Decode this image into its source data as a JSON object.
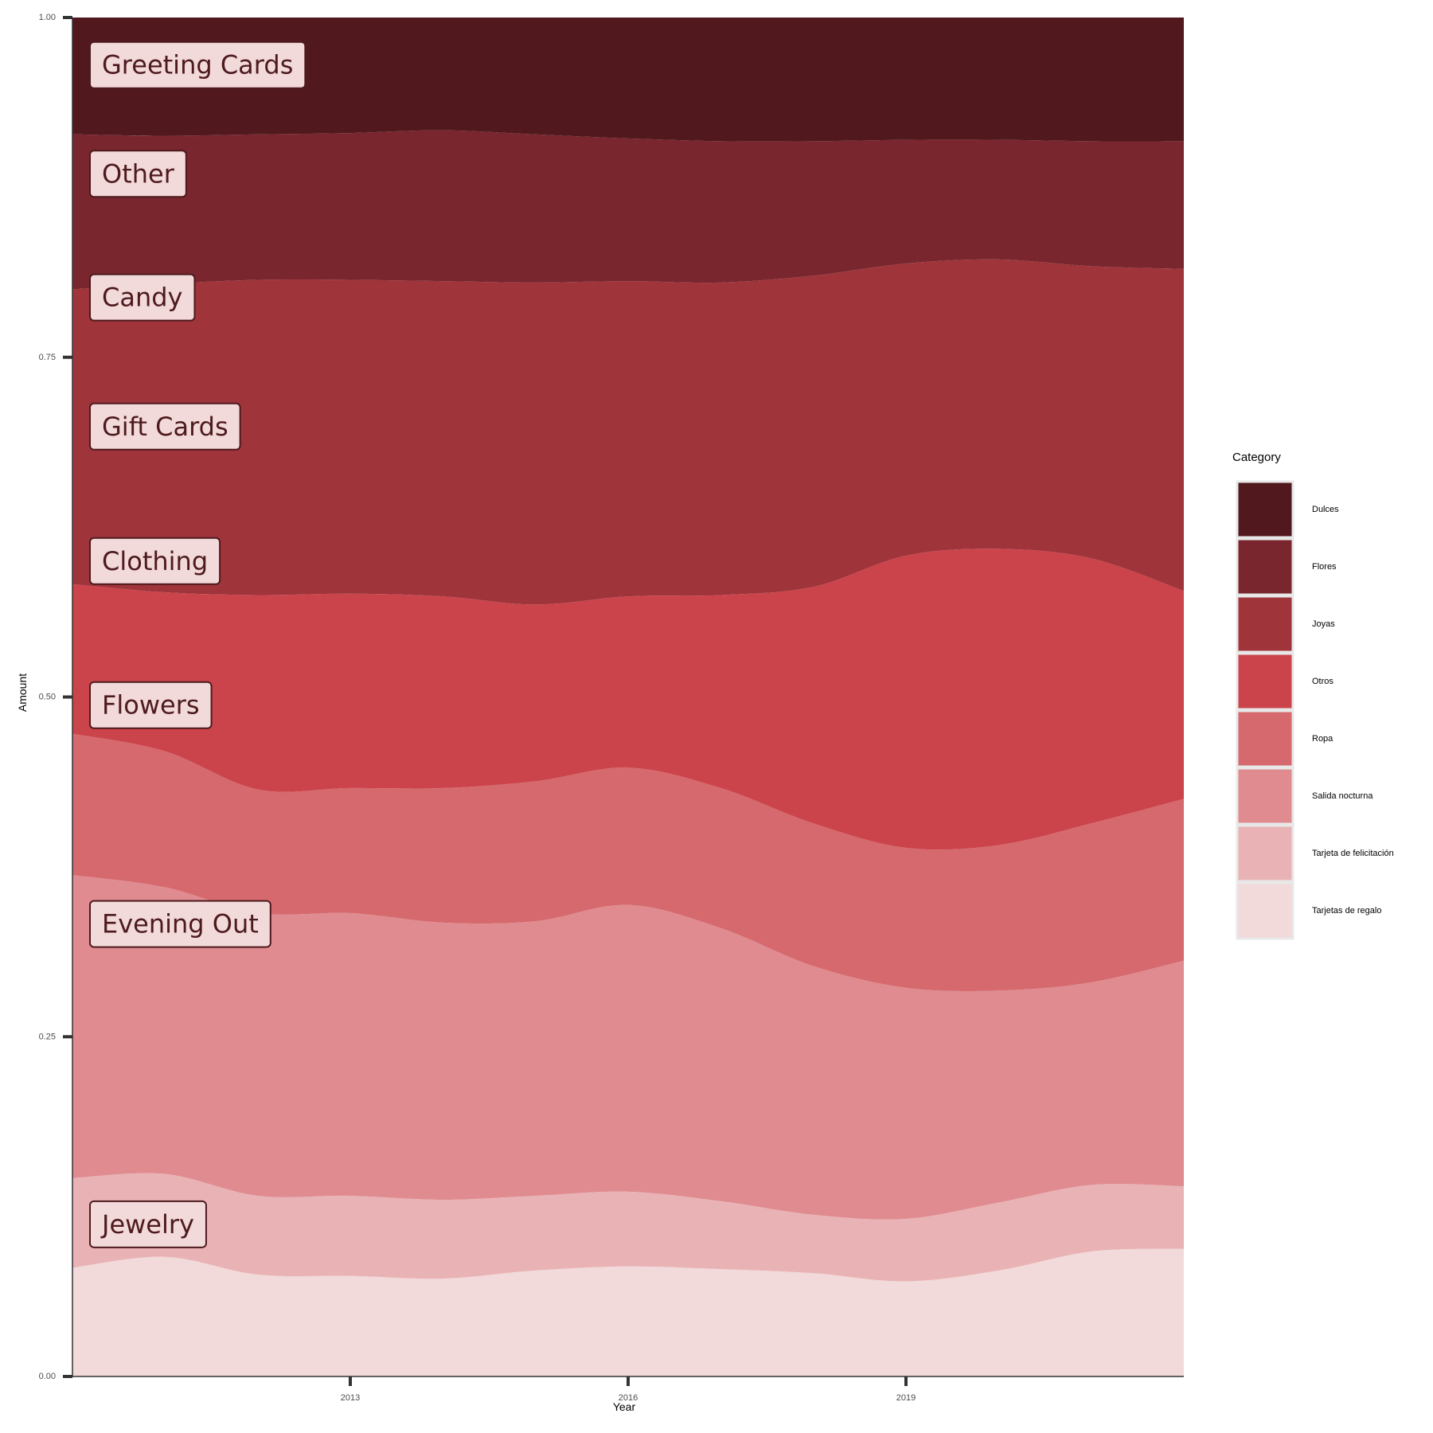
{
  "chart_data": {
    "type": "area",
    "stacking": "fill",
    "xlabel": "Year",
    "ylabel": "Amount",
    "ylim": [
      0,
      1
    ],
    "xlim": [
      2010,
      2022
    ],
    "x_ticks": [
      2013,
      2016,
      2019
    ],
    "y_ticks": [
      0,
      0.25,
      0.5,
      0.75,
      1
    ],
    "y_tick_labels": [
      "0.00",
      "0.25",
      "0.50",
      "0.75",
      "1.00"
    ],
    "grid": false,
    "legend": {
      "title": "Category",
      "placement": "right",
      "entries": [
        "Dulces",
        "Flores",
        "Joyas",
        "Otros",
        "Ropa",
        "Salida nocturna",
        "Tarjeta de felicitación",
        "Tarjetas de regalo"
      ]
    },
    "x": [
      2010,
      2011,
      2012,
      2013,
      2014,
      2015,
      2016,
      2017,
      2018,
      2019,
      2020,
      2021,
      2022
    ],
    "boundaries": [
      [
        0.08,
        0.088,
        0.075,
        0.074,
        0.072,
        0.078,
        0.081,
        0.079,
        0.076,
        0.07,
        0.078,
        0.092,
        0.094
      ],
      [
        0.146,
        0.149,
        0.133,
        0.133,
        0.13,
        0.133,
        0.136,
        0.129,
        0.119,
        0.116,
        0.128,
        0.141,
        0.14
      ],
      [
        0.369,
        0.36,
        0.341,
        0.341,
        0.334,
        0.335,
        0.347,
        0.33,
        0.302,
        0.286,
        0.284,
        0.29,
        0.306
      ],
      [
        0.473,
        0.46,
        0.432,
        0.433,
        0.433,
        0.438,
        0.448,
        0.433,
        0.407,
        0.389,
        0.391,
        0.407,
        0.425
      ],
      [
        0.583,
        0.577,
        0.575,
        0.576,
        0.574,
        0.568,
        0.574,
        0.575,
        0.581,
        0.604,
        0.609,
        0.602,
        0.578
      ],
      [
        0.8,
        0.804,
        0.807,
        0.807,
        0.806,
        0.805,
        0.806,
        0.805,
        0.81,
        0.819,
        0.822,
        0.817,
        0.815
      ],
      [
        0.914,
        0.913,
        0.914,
        0.915,
        0.917,
        0.914,
        0.911,
        0.909,
        0.909,
        0.91,
        0.91,
        0.909,
        0.909
      ],
      [
        1,
        1,
        1,
        1,
        1,
        1,
        1,
        1,
        1,
        1,
        1,
        1,
        1
      ]
    ],
    "series": [
      {
        "name": "Tarjetas de regalo",
        "color": "#f2d9da"
      },
      {
        "name": "Tarjeta de felicitación",
        "color": "#e9b3b5"
      },
      {
        "name": "Salida nocturna",
        "color": "#df8b90"
      },
      {
        "name": "Ropa",
        "color": "#d5696d"
      },
      {
        "name": "Otros",
        "color": "#cb444b"
      },
      {
        "name": "Joyas",
        "color": "#a0343b"
      },
      {
        "name": "Flores",
        "color": "#79262e"
      },
      {
        "name": "Dulces",
        "color": "#51191e"
      }
    ],
    "area_labels": [
      {
        "text": "Greeting Cards",
        "y": 0.965
      },
      {
        "text": "Other",
        "y": 0.885
      },
      {
        "text": "Candy",
        "y": 0.794
      },
      {
        "text": "Gift Cards",
        "y": 0.699
      },
      {
        "text": "Clothing",
        "y": 0.6
      },
      {
        "text": "Flowers",
        "y": 0.494
      },
      {
        "text": "Evening Out",
        "y": 0.333
      },
      {
        "text": "Jewelry",
        "y": 0.112
      }
    ],
    "label_style": {
      "fill": "#f2d9da",
      "border": "#4d1a1d",
      "text": "#4d1a1d"
    }
  }
}
